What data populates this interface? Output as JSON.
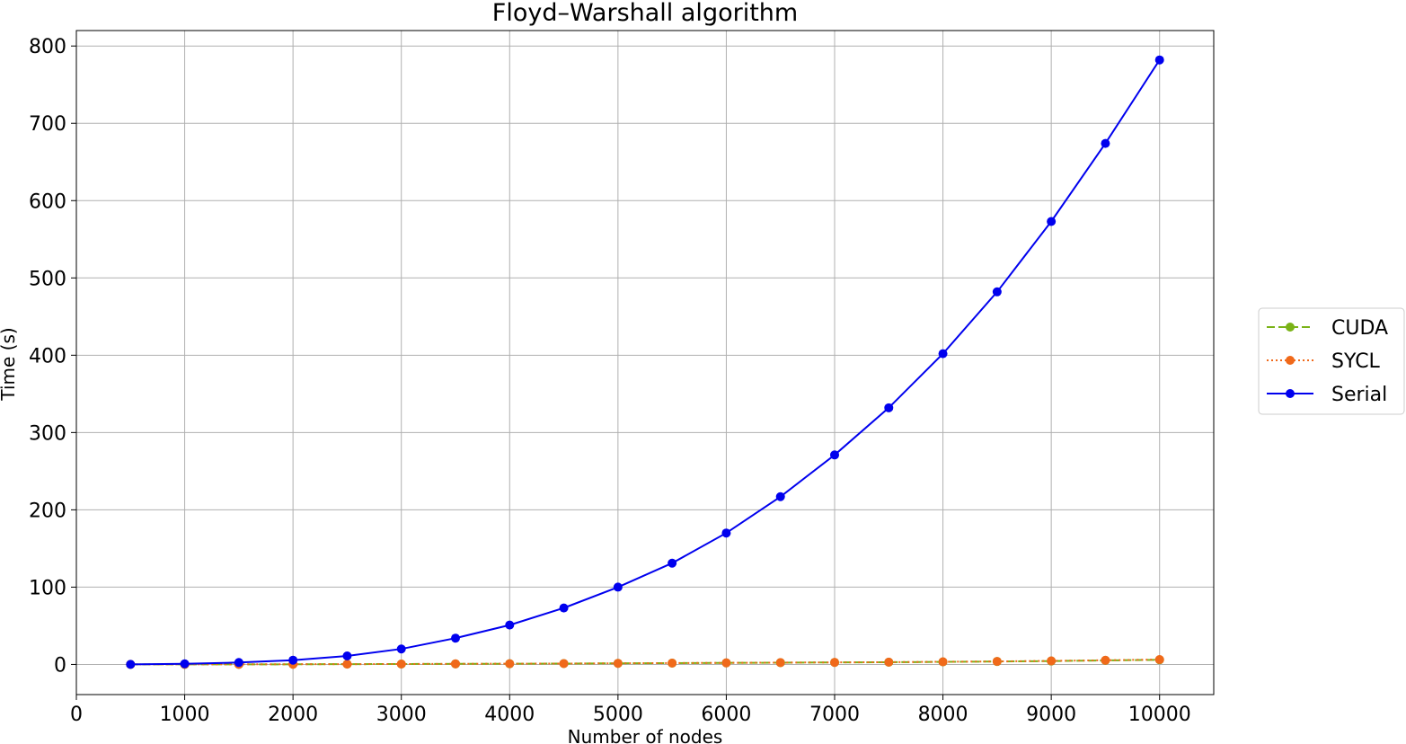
{
  "chart_data": {
    "type": "line",
    "title": "Floyd–Warshall algorithm",
    "xlabel": "Number of nodes",
    "ylabel": "Time (s)",
    "xlim": [
      0,
      10500
    ],
    "ylim": [
      -39,
      820
    ],
    "xticks": [
      0,
      1000,
      2000,
      3000,
      4000,
      5000,
      6000,
      7000,
      8000,
      9000,
      10000
    ],
    "yticks": [
      0,
      100,
      200,
      300,
      400,
      500,
      600,
      700,
      800
    ],
    "grid": true,
    "legend_position": "right-outside",
    "x": [
      500,
      1000,
      1500,
      2000,
      2500,
      3000,
      3500,
      4000,
      4500,
      5000,
      5500,
      6000,
      6500,
      7000,
      7500,
      8000,
      8500,
      9000,
      9500,
      10000
    ],
    "series": [
      {
        "name": "CUDA",
        "color": "#7ab317",
        "linestyle": "dashed",
        "marker": "circle",
        "values": [
          0.01,
          0.05,
          0.1,
          0.2,
          0.35,
          0.5,
          0.7,
          0.9,
          1.1,
          1.4,
          1.7,
          2.0,
          2.3,
          2.6,
          2.9,
          3.3,
          3.8,
          4.4,
          5.2,
          6.0
        ]
      },
      {
        "name": "SYCL",
        "color": "#f0691a",
        "linestyle": "dotted",
        "marker": "circle",
        "values": [
          0.02,
          0.06,
          0.15,
          0.25,
          0.4,
          0.55,
          0.75,
          0.95,
          1.15,
          1.45,
          1.75,
          2.05,
          2.35,
          2.65,
          3.0,
          3.4,
          3.9,
          4.6,
          5.4,
          6.3
        ]
      },
      {
        "name": "Serial",
        "color": "#0000ee",
        "linestyle": "solid",
        "marker": "circle",
        "values": [
          0.1,
          0.8,
          2.5,
          5.5,
          11,
          20,
          34,
          51,
          73,
          100,
          131,
          170,
          217,
          271,
          332,
          402,
          482,
          573,
          674,
          782
        ]
      }
    ]
  }
}
